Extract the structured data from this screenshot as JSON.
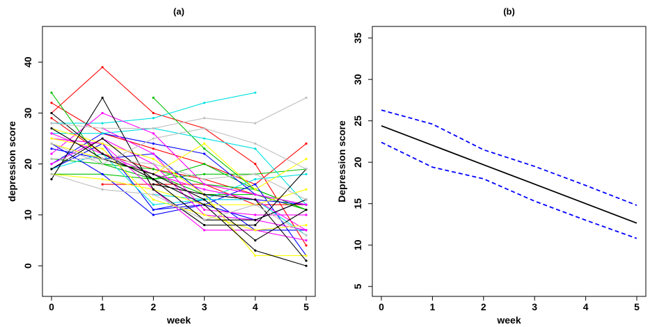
{
  "chart_data": [
    {
      "type": "line",
      "title": "(a)",
      "xlabel": "week",
      "ylabel": "depression score",
      "xlim": [
        0,
        5
      ],
      "ylim": [
        -6,
        47
      ],
      "x_ticks": [
        "0",
        "1",
        "2",
        "3",
        "4",
        "5"
      ],
      "y_ticks": [
        "0",
        "10",
        "20",
        "30",
        "40"
      ],
      "grid": false,
      "legend": "none",
      "x": [
        0,
        1,
        2,
        3,
        4,
        5
      ],
      "series": [
        {
          "color": "#ff0000",
          "values": [
            30,
            39,
            30,
            27,
            20,
            4
          ]
        },
        {
          "color": "#ff0000",
          "values": [
            32,
            26,
            23,
            20,
            16,
            24
          ]
        },
        {
          "color": "#ff0000",
          "values": [
            29,
            22,
            19,
            17,
            14,
            11
          ]
        },
        {
          "color": "#ff0000",
          "values": [
            null,
            16,
            16,
            16,
            12,
            12
          ]
        },
        {
          "color": "#00c000",
          "values": [
            null,
            null,
            33,
            23,
            15,
            11
          ]
        },
        {
          "color": "#00c000",
          "values": [
            34,
            20,
            17,
            20,
            15,
            11
          ]
        },
        {
          "color": "#00c000",
          "values": [
            21,
            20,
            19,
            16,
            15,
            11
          ]
        },
        {
          "color": "#00c000",
          "values": [
            18,
            18,
            17,
            18,
            18,
            19
          ]
        },
        {
          "color": "#00c000",
          "values": [
            null,
            22,
            18,
            14,
            14,
            11
          ]
        },
        {
          "color": "#0000ff",
          "values": [
            24,
            18,
            10,
            12,
            16,
            2
          ]
        },
        {
          "color": "#0000ff",
          "values": [
            23,
            21,
            22,
            14,
            7,
            7
          ]
        },
        {
          "color": "#0000ff",
          "values": [
            20,
            26,
            24,
            22,
            14,
            12
          ]
        },
        {
          "color": "#0000ff",
          "values": [
            19,
            24,
            11,
            13,
            13,
            12
          ]
        },
        {
          "color": "#0000ff",
          "values": [
            null,
            null,
            11,
            12,
            9,
            13
          ]
        },
        {
          "color": "#00e0e0",
          "values": [
            28,
            28,
            29,
            32,
            34,
            null
          ]
        },
        {
          "color": "#00e0e0",
          "values": [
            26,
            26,
            27,
            25,
            23,
            12
          ]
        },
        {
          "color": "#00e0e0",
          "values": [
            19,
            22,
            12,
            13,
            13,
            6
          ]
        },
        {
          "color": "#00e0e0",
          "values": [
            null,
            null,
            14,
            13,
            17,
            18
          ]
        },
        {
          "color": "#ff00ff",
          "values": [
            22,
            30,
            26,
            16,
            14,
            12
          ]
        },
        {
          "color": "#ff00ff",
          "values": [
            20,
            25,
            20,
            10,
            9,
            7
          ]
        },
        {
          "color": "#ff00ff",
          "values": [
            26,
            22,
            18,
            15,
            13,
            7
          ]
        },
        {
          "color": "#ff00ff",
          "values": [
            25,
            24,
            15,
            7,
            7,
            5
          ]
        },
        {
          "color": "#ff00ff",
          "values": [
            null,
            27,
            22,
            11,
            10,
            10
          ]
        },
        {
          "color": "#ffff00",
          "values": [
            27,
            24,
            21,
            14,
            2,
            2
          ]
        },
        {
          "color": "#ffff00",
          "values": [
            24,
            21,
            18,
            24,
            15,
            21
          ]
        },
        {
          "color": "#ffff00",
          "values": [
            25,
            23,
            13,
            10,
            7,
            8
          ]
        },
        {
          "color": "#ffff00",
          "values": [
            18,
            17,
            15,
            12,
            12,
            15
          ]
        },
        {
          "color": "#000000",
          "values": [
            17,
            33,
            15,
            8,
            8,
            19
          ]
        },
        {
          "color": "#000000",
          "values": [
            30,
            22,
            17,
            12,
            3,
            0
          ]
        },
        {
          "color": "#000000",
          "values": [
            27,
            21,
            18,
            13,
            5,
            11
          ]
        },
        {
          "color": "#000000",
          "values": [
            19,
            25,
            17,
            9,
            9,
            13
          ]
        },
        {
          "color": "#000000",
          "values": [
            null,
            null,
            16,
            14,
            13,
            1
          ]
        },
        {
          "color": "#bebebe",
          "values": [
            18,
            15,
            14,
            9,
            12,
            6
          ]
        },
        {
          "color": "#bebebe",
          "values": [
            28,
            27,
            27,
            29,
            28,
            33
          ]
        },
        {
          "color": "#bebebe",
          "values": [
            21,
            21,
            20,
            17,
            18,
            13
          ]
        },
        {
          "color": "#bebebe",
          "values": [
            24,
            20,
            25,
            27,
            24,
            19
          ]
        }
      ]
    },
    {
      "type": "line",
      "title": "(b)",
      "xlabel": "week",
      "ylabel": "Depression score",
      "xlim": [
        0,
        5
      ],
      "ylim": [
        3.8,
        36.4
      ],
      "x_ticks": [
        "0",
        "1",
        "2",
        "3",
        "4",
        "5"
      ],
      "y_ticks": [
        "5",
        "10",
        "15",
        "20",
        "25",
        "30",
        "35"
      ],
      "grid": false,
      "legend": "none",
      "x": [
        0,
        1,
        2,
        3,
        4,
        5
      ],
      "series": [
        {
          "color": "#000000",
          "style": "solid",
          "values": [
            24.4,
            22.05,
            19.7,
            17.35,
            15.0,
            12.65
          ]
        },
        {
          "color": "#0000ff",
          "style": "dashed",
          "values": [
            26.3,
            24.6,
            21.5,
            19.5,
            17.2,
            14.8
          ]
        },
        {
          "color": "#0000ff",
          "style": "dashed",
          "values": [
            22.4,
            19.4,
            18.0,
            15.3,
            13.0,
            10.8
          ]
        }
      ]
    }
  ]
}
